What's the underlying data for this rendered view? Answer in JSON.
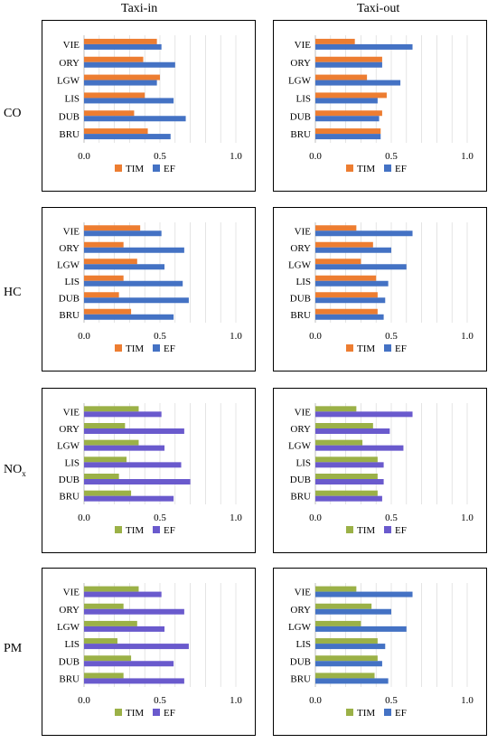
{
  "column_titles": [
    "Taxi-in",
    "Taxi-out"
  ],
  "row_labels": [
    "CO",
    "HC",
    "NO",
    "PM"
  ],
  "row_label_subscripts": [
    "",
    "",
    "x",
    ""
  ],
  "colors": {
    "tim_orange": "#ED7D31",
    "ef_blue": "#4472C4",
    "tim_olive": "#9BB147",
    "ef_purple": "#6A5ACD"
  },
  "chart_data": [
    {
      "type": "bar",
      "orientation": "horizontal",
      "panel": "CO Taxi-in",
      "categories": [
        "VIE",
        "ORY",
        "LGW",
        "LIS",
        "DUB",
        "BRU"
      ],
      "series": [
        {
          "name": "TIM",
          "values": [
            0.48,
            0.39,
            0.5,
            0.4,
            0.33,
            0.42
          ]
        },
        {
          "name": "EF",
          "values": [
            0.51,
            0.6,
            0.48,
            0.59,
            0.67,
            0.57
          ]
        }
      ],
      "xlim": [
        0,
        1
      ],
      "xticks": [
        "0.0",
        "0.5",
        "1.0"
      ],
      "legend": "bottom",
      "grid": true
    },
    {
      "type": "bar",
      "orientation": "horizontal",
      "panel": "CO Taxi-out",
      "categories": [
        "VIE",
        "ORY",
        "LGW",
        "LIS",
        "DUB",
        "BRU"
      ],
      "series": [
        {
          "name": "TIM",
          "values": [
            0.26,
            0.44,
            0.34,
            0.47,
            0.44,
            0.43
          ]
        },
        {
          "name": "EF",
          "values": [
            0.64,
            0.44,
            0.56,
            0.41,
            0.42,
            0.43
          ]
        }
      ],
      "xlim": [
        0,
        1
      ],
      "xticks": [
        "0.0",
        "0.5",
        "1.0"
      ],
      "legend": "bottom",
      "grid": true
    },
    {
      "type": "bar",
      "orientation": "horizontal",
      "panel": "HC Taxi-in",
      "categories": [
        "VIE",
        "ORY",
        "LGW",
        "LIS",
        "DUB",
        "BRU"
      ],
      "series": [
        {
          "name": "TIM",
          "values": [
            0.37,
            0.26,
            0.35,
            0.26,
            0.23,
            0.31
          ]
        },
        {
          "name": "EF",
          "values": [
            0.51,
            0.66,
            0.53,
            0.65,
            0.69,
            0.59
          ]
        }
      ],
      "xlim": [
        0,
        1
      ],
      "xticks": [
        "0.0",
        "0.5",
        "1.0"
      ],
      "legend": "bottom",
      "grid": true
    },
    {
      "type": "bar",
      "orientation": "horizontal",
      "panel": "HC Taxi-out",
      "categories": [
        "VIE",
        "ORY",
        "LGW",
        "LIS",
        "DUB",
        "BRU"
      ],
      "series": [
        {
          "name": "TIM",
          "values": [
            0.27,
            0.38,
            0.3,
            0.4,
            0.41,
            0.41
          ]
        },
        {
          "name": "EF",
          "values": [
            0.64,
            0.5,
            0.6,
            0.48,
            0.46,
            0.45
          ]
        }
      ],
      "xlim": [
        0,
        1
      ],
      "xticks": [
        "0.0",
        "0.5",
        "1.0"
      ],
      "legend": "bottom",
      "grid": true
    },
    {
      "type": "bar",
      "orientation": "horizontal",
      "panel": "NOx Taxi-in",
      "categories": [
        "VIE",
        "ORY",
        "LGW",
        "LIS",
        "DUB",
        "BRU"
      ],
      "series": [
        {
          "name": "TIM",
          "values": [
            0.36,
            0.27,
            0.36,
            0.28,
            0.23,
            0.31
          ]
        },
        {
          "name": "EF",
          "values": [
            0.51,
            0.66,
            0.53,
            0.64,
            0.7,
            0.59
          ]
        }
      ],
      "xlim": [
        0,
        1
      ],
      "xticks": [
        "0.0",
        "0.5",
        "1.0"
      ],
      "legend": "bottom",
      "grid": true
    },
    {
      "type": "bar",
      "orientation": "horizontal",
      "panel": "NOx Taxi-out",
      "categories": [
        "VIE",
        "ORY",
        "LGW",
        "LIS",
        "DUB",
        "BRU"
      ],
      "series": [
        {
          "name": "TIM",
          "values": [
            0.27,
            0.38,
            0.31,
            0.41,
            0.41,
            0.41
          ]
        },
        {
          "name": "EF",
          "values": [
            0.64,
            0.49,
            0.58,
            0.45,
            0.45,
            0.44
          ]
        }
      ],
      "xlim": [
        0,
        1
      ],
      "xticks": [
        "0.0",
        "0.5",
        "1.0"
      ],
      "legend": "bottom",
      "grid": true
    },
    {
      "type": "bar",
      "orientation": "horizontal",
      "panel": "PM Taxi-in",
      "categories": [
        "VIE",
        "ORY",
        "LGW",
        "LIS",
        "DUB",
        "BRU"
      ],
      "series": [
        {
          "name": "TIM",
          "values": [
            0.36,
            0.26,
            0.35,
            0.22,
            0.31,
            0.26
          ]
        },
        {
          "name": "EF",
          "values": [
            0.51,
            0.66,
            0.53,
            0.69,
            0.59,
            0.66
          ]
        }
      ],
      "xlim": [
        0,
        1
      ],
      "xticks": [
        "0.0",
        "0.5",
        "1.0"
      ],
      "legend": "bottom",
      "grid": true
    },
    {
      "type": "bar",
      "orientation": "horizontal",
      "panel": "PM Taxi-out",
      "categories": [
        "VIE",
        "ORY",
        "LGW",
        "LIS",
        "DUB",
        "BRU"
      ],
      "series": [
        {
          "name": "TIM",
          "values": [
            0.27,
            0.37,
            0.3,
            0.41,
            0.41,
            0.39
          ]
        },
        {
          "name": "EF",
          "values": [
            0.64,
            0.5,
            0.6,
            0.46,
            0.44,
            0.48
          ]
        }
      ],
      "xlim": [
        0,
        1
      ],
      "xticks": [
        "0.0",
        "0.5",
        "1.0"
      ],
      "legend": "bottom",
      "grid": true
    }
  ]
}
